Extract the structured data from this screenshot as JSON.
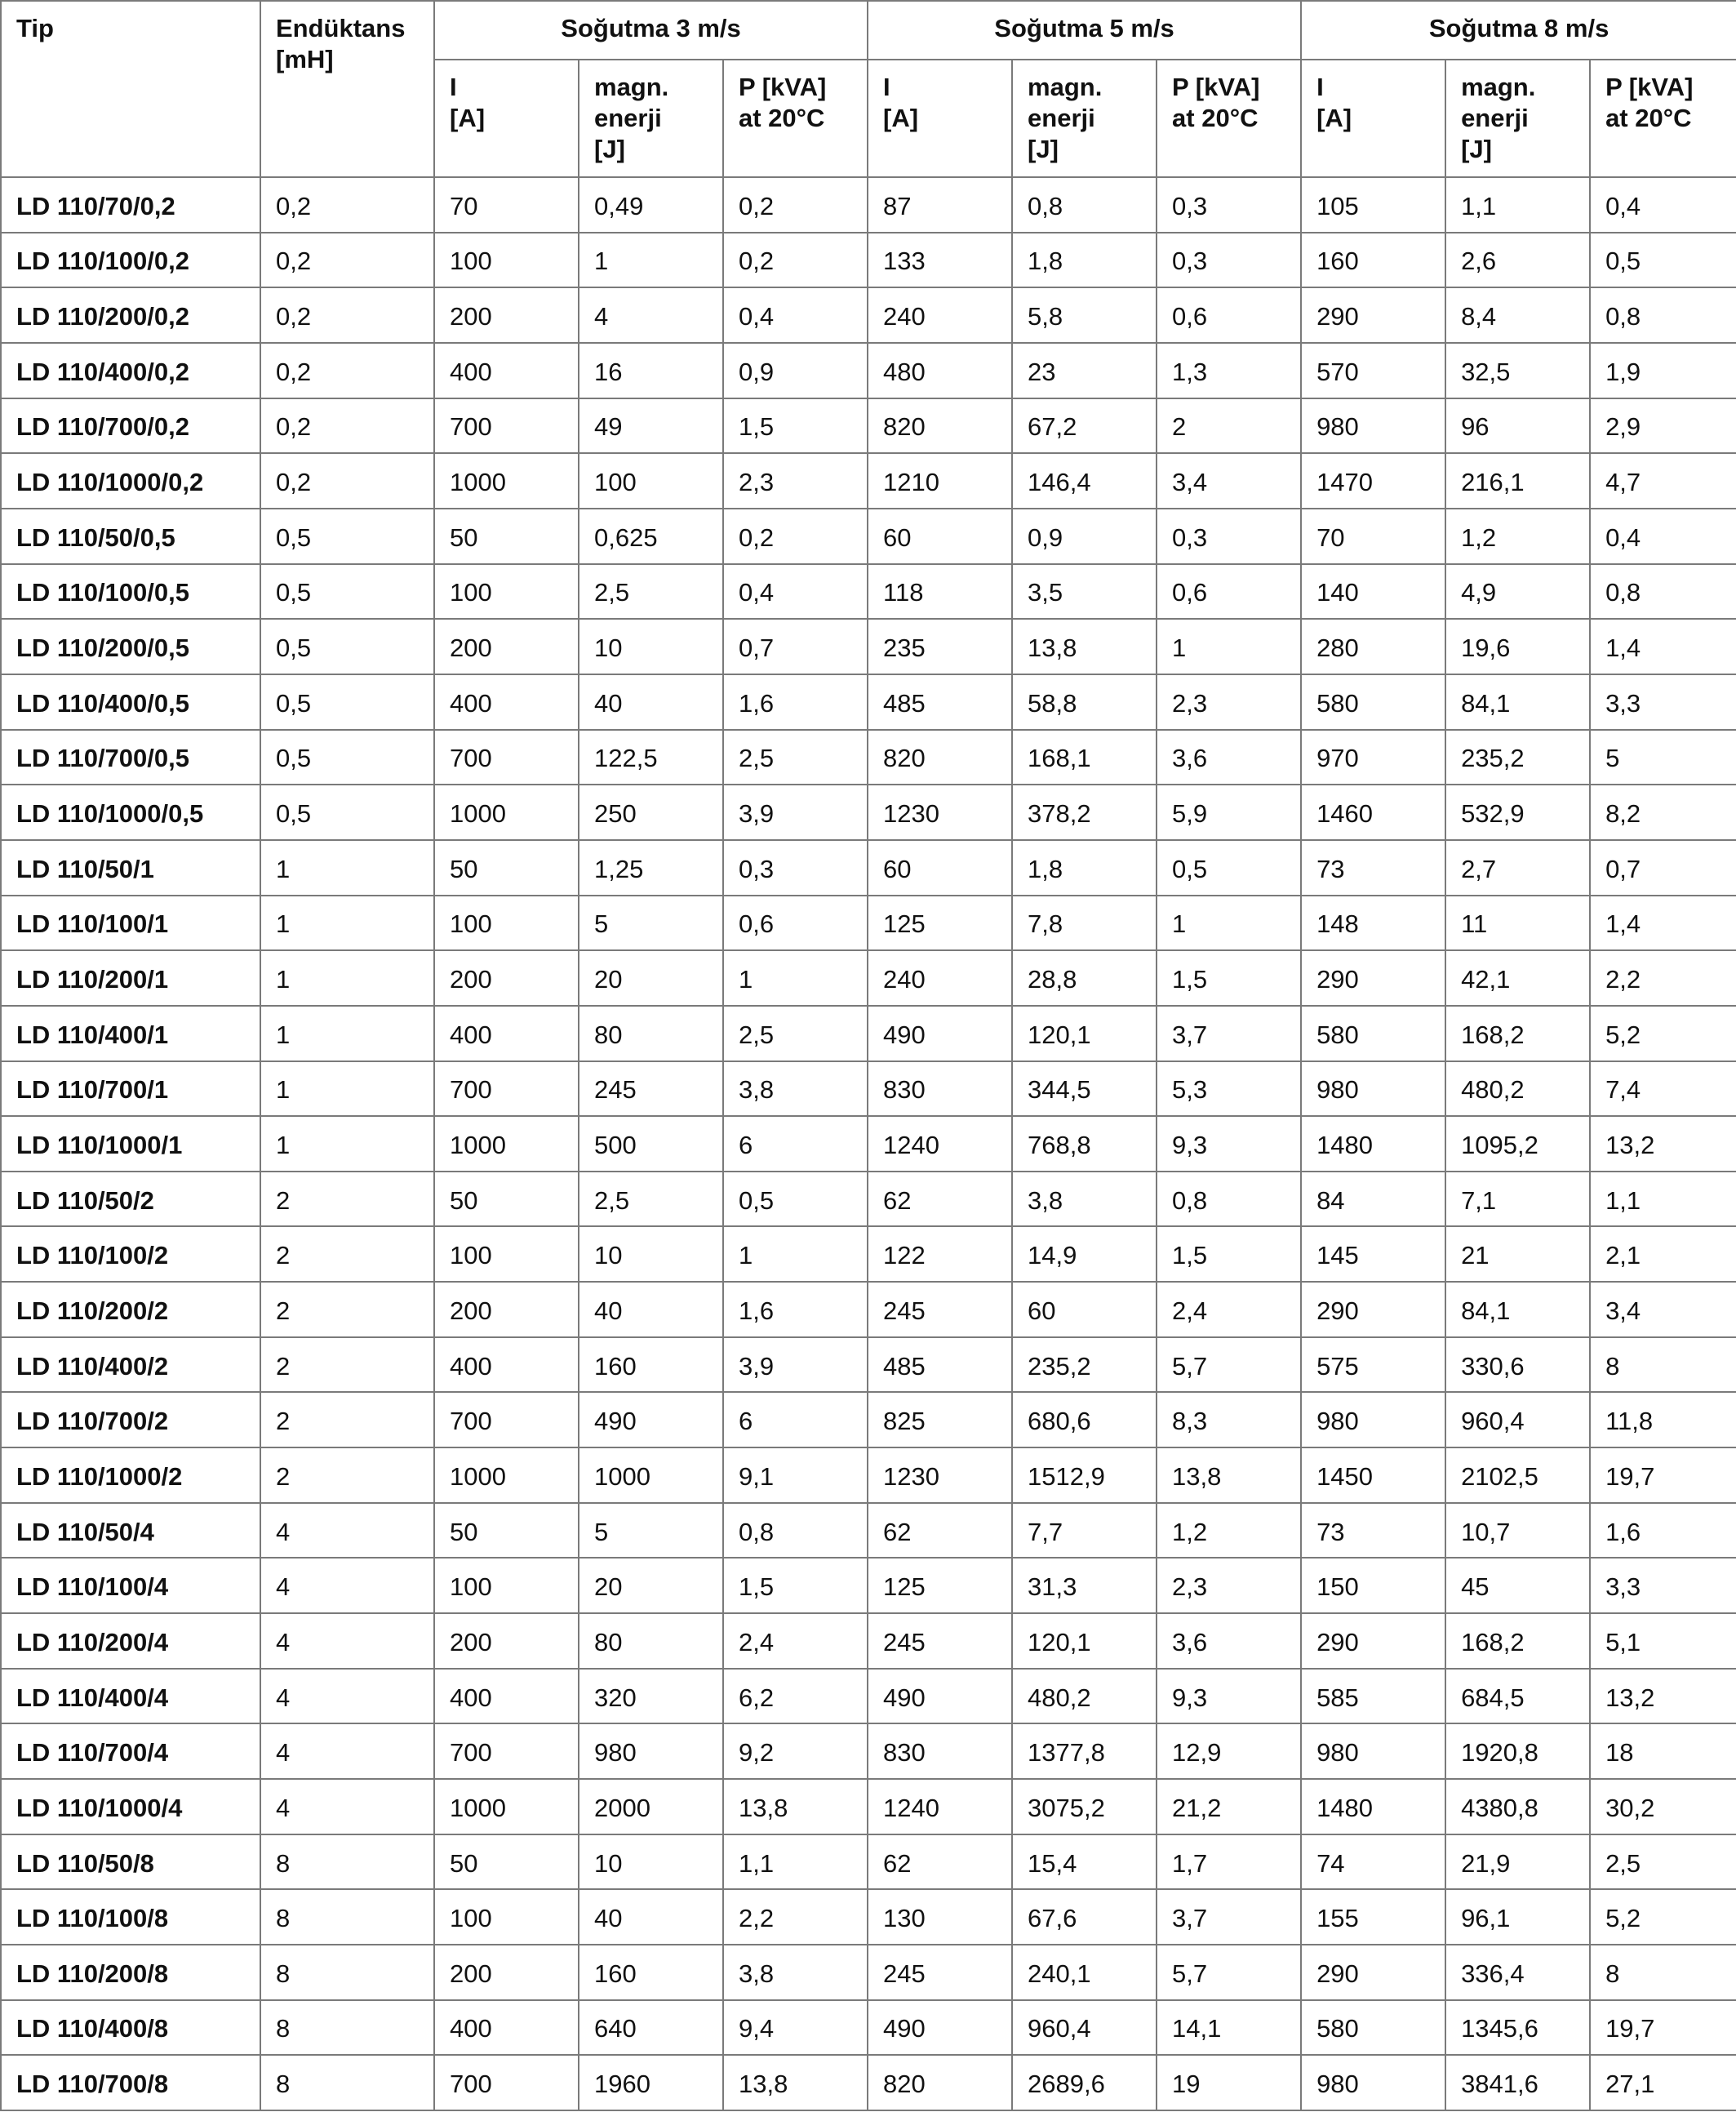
{
  "table": {
    "headers": {
      "tip": "Tip",
      "enduktans": "Endüktans\n[mH]",
      "groups": [
        "Soğutma 3 m/s",
        "Soğutma 5 m/s",
        "Soğutma 8 m/s"
      ],
      "sub": [
        "I\n[A]",
        "magn.\nenerji\n[J]",
        "P [kVA]\nat 20°C"
      ]
    },
    "rows": [
      [
        "LD 110/70/0,2",
        "0,2",
        "70",
        "0,49",
        "0,2",
        "87",
        "0,8",
        "0,3",
        "105",
        "1,1",
        "0,4"
      ],
      [
        "LD 110/100/0,2",
        "0,2",
        "100",
        "1",
        "0,2",
        "133",
        "1,8",
        "0,3",
        "160",
        "2,6",
        "0,5"
      ],
      [
        "LD 110/200/0,2",
        "0,2",
        "200",
        "4",
        "0,4",
        "240",
        "5,8",
        "0,6",
        "290",
        "8,4",
        "0,8"
      ],
      [
        "LD 110/400/0,2",
        "0,2",
        "400",
        "16",
        "0,9",
        "480",
        "23",
        "1,3",
        "570",
        "32,5",
        "1,9"
      ],
      [
        "LD 110/700/0,2",
        "0,2",
        "700",
        "49",
        "1,5",
        "820",
        "67,2",
        "2",
        "980",
        "96",
        "2,9"
      ],
      [
        "LD 110/1000/0,2",
        "0,2",
        "1000",
        "100",
        "2,3",
        "1210",
        "146,4",
        "3,4",
        "1470",
        "216,1",
        "4,7"
      ],
      [
        "LD 110/50/0,5",
        "0,5",
        "50",
        "0,625",
        "0,2",
        "60",
        "0,9",
        "0,3",
        "70",
        "1,2",
        "0,4"
      ],
      [
        "LD 110/100/0,5",
        "0,5",
        "100",
        "2,5",
        "0,4",
        "118",
        "3,5",
        "0,6",
        "140",
        "4,9",
        "0,8"
      ],
      [
        "LD 110/200/0,5",
        "0,5",
        "200",
        "10",
        "0,7",
        "235",
        "13,8",
        "1",
        "280",
        "19,6",
        "1,4"
      ],
      [
        "LD 110/400/0,5",
        "0,5",
        "400",
        "40",
        "1,6",
        "485",
        "58,8",
        "2,3",
        "580",
        "84,1",
        "3,3"
      ],
      [
        "LD 110/700/0,5",
        "0,5",
        "700",
        "122,5",
        "2,5",
        "820",
        "168,1",
        "3,6",
        "970",
        "235,2",
        "5"
      ],
      [
        "LD 110/1000/0,5",
        "0,5",
        "1000",
        "250",
        "3,9",
        "1230",
        "378,2",
        "5,9",
        "1460",
        "532,9",
        "8,2"
      ],
      [
        "LD 110/50/1",
        "1",
        "50",
        "1,25",
        "0,3",
        "60",
        "1,8",
        "0,5",
        "73",
        "2,7",
        "0,7"
      ],
      [
        "LD 110/100/1",
        "1",
        "100",
        "5",
        "0,6",
        "125",
        "7,8",
        "1",
        "148",
        "11",
        "1,4"
      ],
      [
        "LD 110/200/1",
        "1",
        "200",
        "20",
        "1",
        "240",
        "28,8",
        "1,5",
        "290",
        "42,1",
        "2,2"
      ],
      [
        "LD 110/400/1",
        "1",
        "400",
        "80",
        "2,5",
        "490",
        "120,1",
        "3,7",
        "580",
        "168,2",
        "5,2"
      ],
      [
        "LD 110/700/1",
        "1",
        "700",
        "245",
        "3,8",
        "830",
        "344,5",
        "5,3",
        "980",
        "480,2",
        "7,4"
      ],
      [
        "LD 110/1000/1",
        "1",
        "1000",
        "500",
        "6",
        "1240",
        "768,8",
        "9,3",
        "1480",
        "1095,2",
        "13,2"
      ],
      [
        "LD 110/50/2",
        "2",
        "50",
        "2,5",
        "0,5",
        "62",
        "3,8",
        "0,8",
        "84",
        "7,1",
        "1,1"
      ],
      [
        "LD 110/100/2",
        "2",
        "100",
        "10",
        "1",
        "122",
        "14,9",
        "1,5",
        "145",
        "21",
        "2,1"
      ],
      [
        "LD 110/200/2",
        "2",
        "200",
        "40",
        "1,6",
        "245",
        "60",
        "2,4",
        "290",
        "84,1",
        "3,4"
      ],
      [
        "LD 110/400/2",
        "2",
        "400",
        "160",
        "3,9",
        "485",
        "235,2",
        "5,7",
        "575",
        "330,6",
        "8"
      ],
      [
        "LD 110/700/2",
        "2",
        "700",
        "490",
        "6",
        "825",
        "680,6",
        "8,3",
        "980",
        "960,4",
        "11,8"
      ],
      [
        "LD 110/1000/2",
        "2",
        "1000",
        "1000",
        "9,1",
        "1230",
        "1512,9",
        "13,8",
        "1450",
        "2102,5",
        "19,7"
      ],
      [
        "LD 110/50/4",
        "4",
        "50",
        "5",
        "0,8",
        "62",
        "7,7",
        "1,2",
        "73",
        "10,7",
        "1,6"
      ],
      [
        "LD 110/100/4",
        "4",
        "100",
        "20",
        "1,5",
        "125",
        "31,3",
        "2,3",
        "150",
        "45",
        "3,3"
      ],
      [
        "LD 110/200/4",
        "4",
        "200",
        "80",
        "2,4",
        "245",
        "120,1",
        "3,6",
        "290",
        "168,2",
        "5,1"
      ],
      [
        "LD 110/400/4",
        "4",
        "400",
        "320",
        "6,2",
        "490",
        "480,2",
        "9,3",
        "585",
        "684,5",
        "13,2"
      ],
      [
        "LD 110/700/4",
        "4",
        "700",
        "980",
        "9,2",
        "830",
        "1377,8",
        "12,9",
        "980",
        "1920,8",
        "18"
      ],
      [
        "LD 110/1000/4",
        "4",
        "1000",
        "2000",
        "13,8",
        "1240",
        "3075,2",
        "21,2",
        "1480",
        "4380,8",
        "30,2"
      ],
      [
        "LD 110/50/8",
        "8",
        "50",
        "10",
        "1,1",
        "62",
        "15,4",
        "1,7",
        "74",
        "21,9",
        "2,5"
      ],
      [
        "LD 110/100/8",
        "8",
        "100",
        "40",
        "2,2",
        "130",
        "67,6",
        "3,7",
        "155",
        "96,1",
        "5,2"
      ],
      [
        "LD 110/200/8",
        "8",
        "200",
        "160",
        "3,8",
        "245",
        "240,1",
        "5,7",
        "290",
        "336,4",
        "8"
      ],
      [
        "LD 110/400/8",
        "8",
        "400",
        "640",
        "9,4",
        "490",
        "960,4",
        "14,1",
        "580",
        "1345,6",
        "19,7"
      ],
      [
        "LD 110/700/8",
        "8",
        "700",
        "1960",
        "13,8",
        "820",
        "2689,6",
        "19",
        "980",
        "3841,6",
        "27,1"
      ]
    ]
  }
}
